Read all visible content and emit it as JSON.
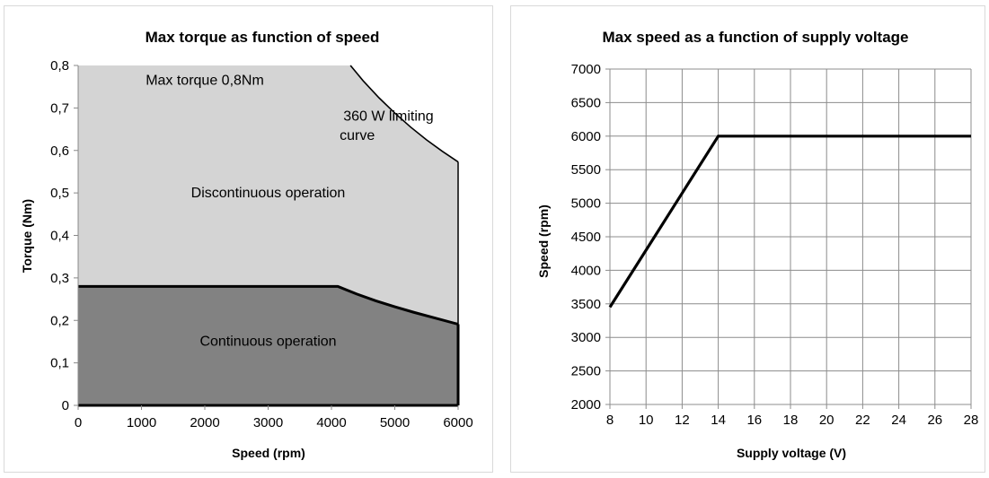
{
  "chart_data": [
    {
      "type": "area",
      "title": "Max torque as function of speed",
      "xlabel": "Speed (rpm)",
      "ylabel": "Torque (Nm)",
      "xlim": [
        0,
        6000
      ],
      "ylim": [
        0,
        0.8
      ],
      "x_ticks": [
        "0",
        "1000",
        "2000",
        "3000",
        "4000",
        "5000",
        "6000"
      ],
      "y_ticks": [
        "0",
        "0,1",
        "0,2",
        "0,3",
        "0,4",
        "0,5",
        "0,6",
        "0,7",
        "0,8"
      ],
      "grid": false,
      "series": [
        {
          "name": "Discontinuous operation",
          "color": "#d4d4d4",
          "x": [
            0,
            4300,
            4500,
            4750,
            5000,
            5250,
            5500,
            5750,
            6000
          ],
          "y": [
            0.8,
            0.8,
            0.764,
            0.724,
            0.688,
            0.655,
            0.625,
            0.598,
            0.573
          ]
        },
        {
          "name": "Continuous operation",
          "color": "#828282",
          "x": [
            0,
            4100,
            4400,
            4700,
            5000,
            5300,
            5600,
            6000
          ],
          "y": [
            0.28,
            0.28,
            0.262,
            0.246,
            0.232,
            0.219,
            0.207,
            0.191
          ]
        }
      ],
      "annotations": [
        {
          "text": "Max torque 0,8Nm",
          "x": 2000,
          "y": 0.755
        },
        {
          "text": "360 W limiting",
          "x": 4900,
          "y": 0.67
        },
        {
          "text": "curve",
          "x": 4130,
          "y": 0.625
        },
        {
          "text": "Discontinuous operation",
          "x": 3000,
          "y": 0.49
        },
        {
          "text": "Continuous operation",
          "x": 3000,
          "y": 0.14
        }
      ]
    },
    {
      "type": "line",
      "title": "Max speed as a function of supply voltage",
      "xlabel": "Supply voltage (V)",
      "ylabel": "Speed (rpm)",
      "xlim": [
        8,
        28
      ],
      "ylim": [
        2000,
        7000
      ],
      "x_ticks": [
        "8",
        "10",
        "12",
        "14",
        "16",
        "18",
        "20",
        "22",
        "24",
        "26",
        "28"
      ],
      "y_ticks": [
        "2000",
        "2500",
        "3000",
        "3500",
        "4000",
        "4500",
        "5000",
        "5500",
        "6000",
        "6500",
        "7000"
      ],
      "grid": true,
      "series": [
        {
          "color": "#000000",
          "x": [
            8,
            14,
            28
          ],
          "y": [
            3450,
            6000,
            6000
          ]
        }
      ]
    }
  ]
}
